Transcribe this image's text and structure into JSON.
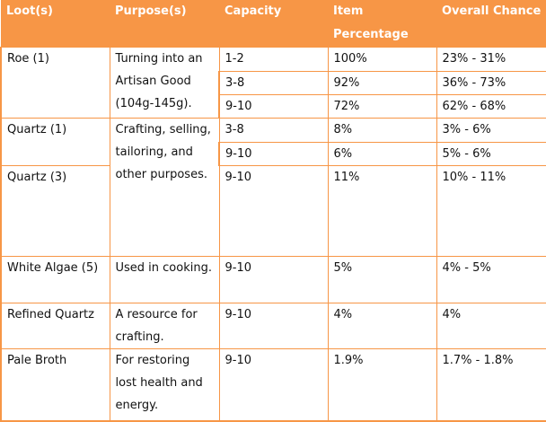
{
  "header": [
    "Loot(s)",
    "Purpose(s)",
    "Capacity",
    "Item Percentage",
    "Overall Chance"
  ],
  "rows": [
    {
      "loot": "Roe (1)",
      "purpose": "Turning into an Artisan Good (104g-145g).",
      "capacity": "1-2",
      "item": "100%",
      "overall": "23% - 31%"
    },
    {
      "capacity": "3-8",
      "item": "92%",
      "overall": "36% - 73%"
    },
    {
      "capacity": "9-10",
      "item": "72%",
      "overall": "62% - 68%"
    },
    {
      "loot": "Quartz (1)",
      "purpose": "Crafting, selling, tailoring, and other purposes.",
      "capacity": "3-8",
      "item": "8%",
      "overall": "3% - 6%"
    },
    {
      "capacity": "9-10",
      "item": "6%",
      "overall": "5% - 6%"
    },
    {
      "loot": "Quartz (3)",
      "capacity": "9-10",
      "item": "11%",
      "overall": "10% - 11%"
    },
    {
      "loot": "White Algae (5)",
      "purpose": "Used in cooking.",
      "capacity": "9-10",
      "item": "5%",
      "overall": "4% - 5%"
    },
    {
      "loot": "Refined Quartz",
      "purpose": "A resource for crafting.",
      "capacity": "9-10",
      "item": "4%",
      "overall": "4%"
    },
    {
      "loot": "Pale Broth",
      "purpose": "For restoring lost health and energy.",
      "capacity": "9-10",
      "item": "1.9%",
      "overall": "1.7% - 1.8%"
    }
  ],
  "colors": {
    "header_bg": "#f79646",
    "border": "#f79646",
    "header_text": "#ffffff"
  }
}
